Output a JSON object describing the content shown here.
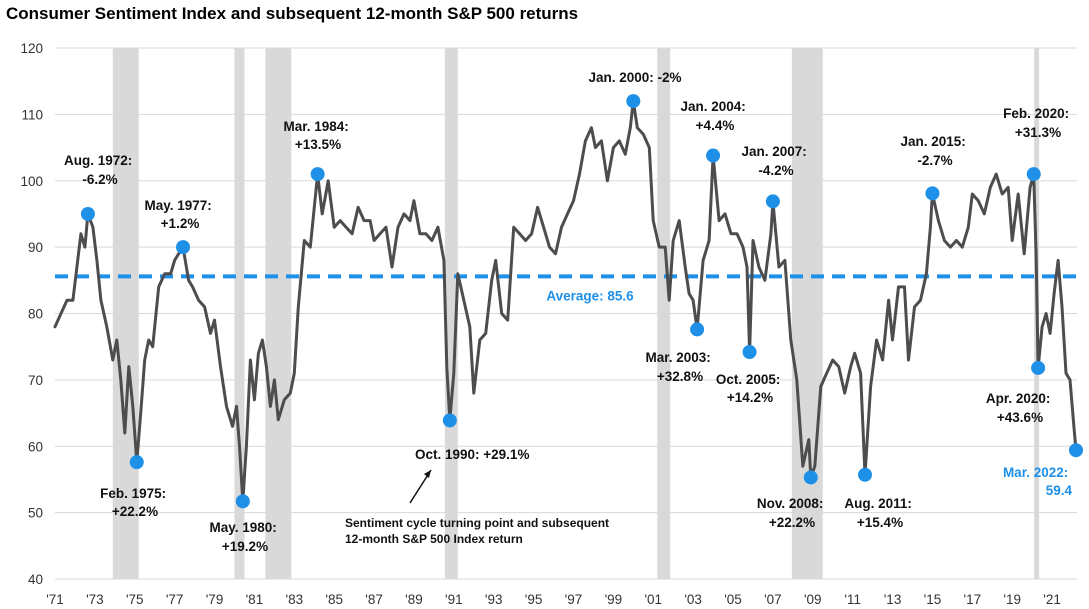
{
  "chart_data": {
    "type": "line",
    "title": "Consumer Sentiment Index and subsequent 12-month S&P 500 returns",
    "xlabel": "",
    "ylabel": "",
    "ylim": [
      40,
      120
    ],
    "y_ticks": [
      40,
      50,
      60,
      70,
      80,
      90,
      100,
      110,
      120
    ],
    "x_ticks": [
      {
        "year": 1971,
        "label": "'71"
      },
      {
        "year": 1973,
        "label": "'73"
      },
      {
        "year": 1975,
        "label": "'75"
      },
      {
        "year": 1977,
        "label": "'77"
      },
      {
        "year": 1979,
        "label": "'79"
      },
      {
        "year": 1981,
        "label": "'81"
      },
      {
        "year": 1983,
        "label": "'83"
      },
      {
        "year": 1985,
        "label": "'85"
      },
      {
        "year": 1987,
        "label": "'87"
      },
      {
        "year": 1989,
        "label": "'89"
      },
      {
        "year": 1991,
        "label": "'91"
      },
      {
        "year": 1993,
        "label": "'93"
      },
      {
        "year": 1995,
        "label": "'95"
      },
      {
        "year": 1997,
        "label": "'97"
      },
      {
        "year": 1999,
        "label": "'99"
      },
      {
        "year": 2001,
        "label": "'01"
      },
      {
        "year": 2003,
        "label": "'03"
      },
      {
        "year": 2005,
        "label": "'05"
      },
      {
        "year": 2007,
        "label": "'07"
      },
      {
        "year": 2009,
        "label": "'09"
      },
      {
        "year": 2011,
        "label": "'11"
      },
      {
        "year": 2013,
        "label": "'13"
      },
      {
        "year": 2015,
        "label": "'15"
      },
      {
        "year": 2017,
        "label": "'17"
      },
      {
        "year": 2019,
        "label": "'19"
      },
      {
        "year": 2021,
        "label": "'21"
      }
    ],
    "x_range": [
      1971,
      2022.25
    ],
    "recessions": [
      [
        1973.9,
        1975.2
      ],
      [
        1980.0,
        1980.5
      ],
      [
        1981.55,
        1982.85
      ],
      [
        1990.55,
        1991.2
      ],
      [
        2001.2,
        2001.85
      ],
      [
        2007.95,
        2009.5
      ],
      [
        2020.1,
        2020.35
      ]
    ],
    "average": {
      "value": 85.6,
      "label": "Average: 85.6"
    },
    "series": [
      {
        "name": "Consumer Sentiment Index",
        "points": [
          [
            1971.0,
            78
          ],
          [
            1971.3,
            80
          ],
          [
            1971.6,
            82
          ],
          [
            1971.9,
            82
          ],
          [
            1972.1,
            87
          ],
          [
            1972.3,
            92
          ],
          [
            1972.5,
            90
          ],
          [
            1972.65,
            95
          ],
          [
            1972.9,
            93
          ],
          [
            1973.1,
            88
          ],
          [
            1973.3,
            82
          ],
          [
            1973.6,
            78
          ],
          [
            1973.9,
            73
          ],
          [
            1974.1,
            76
          ],
          [
            1974.3,
            70
          ],
          [
            1974.5,
            62
          ],
          [
            1974.7,
            72
          ],
          [
            1974.9,
            66
          ],
          [
            1975.1,
            57.6
          ],
          [
            1975.3,
            65
          ],
          [
            1975.5,
            73
          ],
          [
            1975.7,
            76
          ],
          [
            1975.9,
            75
          ],
          [
            1976.2,
            84
          ],
          [
            1976.5,
            86
          ],
          [
            1976.8,
            86
          ],
          [
            1977.0,
            88
          ],
          [
            1977.2,
            89
          ],
          [
            1977.42,
            90
          ],
          [
            1977.7,
            85
          ],
          [
            1977.9,
            84
          ],
          [
            1978.2,
            82
          ],
          [
            1978.5,
            81
          ],
          [
            1978.8,
            77
          ],
          [
            1979.0,
            79
          ],
          [
            1979.3,
            72
          ],
          [
            1979.6,
            66
          ],
          [
            1979.9,
            63
          ],
          [
            1980.1,
            66
          ],
          [
            1980.25,
            60
          ],
          [
            1980.42,
            51.7
          ],
          [
            1980.6,
            60
          ],
          [
            1980.8,
            73
          ],
          [
            1981.0,
            67
          ],
          [
            1981.2,
            74
          ],
          [
            1981.4,
            76
          ],
          [
            1981.6,
            72
          ],
          [
            1981.8,
            66
          ],
          [
            1982.0,
            70
          ],
          [
            1982.2,
            64
          ],
          [
            1982.5,
            67
          ],
          [
            1982.8,
            68
          ],
          [
            1983.0,
            71
          ],
          [
            1983.2,
            81
          ],
          [
            1983.5,
            91
          ],
          [
            1983.8,
            90
          ],
          [
            1984.17,
            101
          ],
          [
            1984.4,
            95
          ],
          [
            1984.7,
            100
          ],
          [
            1985.0,
            93
          ],
          [
            1985.3,
            94
          ],
          [
            1985.6,
            93
          ],
          [
            1985.9,
            92
          ],
          [
            1986.2,
            96
          ],
          [
            1986.5,
            94
          ],
          [
            1986.8,
            94
          ],
          [
            1987.0,
            91
          ],
          [
            1987.3,
            92
          ],
          [
            1987.6,
            93
          ],
          [
            1987.9,
            87
          ],
          [
            1988.2,
            93
          ],
          [
            1988.5,
            95
          ],
          [
            1988.8,
            94
          ],
          [
            1989.0,
            97
          ],
          [
            1989.3,
            92
          ],
          [
            1989.6,
            92
          ],
          [
            1989.9,
            91
          ],
          [
            1990.2,
            93
          ],
          [
            1990.5,
            88
          ],
          [
            1990.65,
            72
          ],
          [
            1990.8,
            63.9
          ],
          [
            1991.0,
            71
          ],
          [
            1991.2,
            86
          ],
          [
            1991.5,
            82
          ],
          [
            1991.8,
            78
          ],
          [
            1992.0,
            68
          ],
          [
            1992.3,
            76
          ],
          [
            1992.6,
            77
          ],
          [
            1992.9,
            85
          ],
          [
            1993.1,
            88
          ],
          [
            1993.4,
            80
          ],
          [
            1993.7,
            79
          ],
          [
            1994.0,
            93
          ],
          [
            1994.3,
            92
          ],
          [
            1994.6,
            91
          ],
          [
            1994.9,
            92
          ],
          [
            1995.2,
            96
          ],
          [
            1995.5,
            93
          ],
          [
            1995.8,
            90
          ],
          [
            1996.1,
            89
          ],
          [
            1996.4,
            93
          ],
          [
            1996.7,
            95
          ],
          [
            1997.0,
            97
          ],
          [
            1997.3,
            101
          ],
          [
            1997.6,
            106
          ],
          [
            1997.9,
            108
          ],
          [
            1998.1,
            105
          ],
          [
            1998.4,
            106
          ],
          [
            1998.7,
            100
          ],
          [
            1999.0,
            105
          ],
          [
            1999.3,
            106
          ],
          [
            1999.6,
            104
          ],
          [
            1999.85,
            108
          ],
          [
            2000.0,
            112
          ],
          [
            2000.2,
            108
          ],
          [
            2000.5,
            107
          ],
          [
            2000.8,
            105
          ],
          [
            2001.0,
            94
          ],
          [
            2001.3,
            90
          ],
          [
            2001.6,
            90
          ],
          [
            2001.8,
            82
          ],
          [
            2002.0,
            91
          ],
          [
            2002.3,
            94
          ],
          [
            2002.6,
            87
          ],
          [
            2002.8,
            83
          ],
          [
            2003.0,
            82
          ],
          [
            2003.2,
            77.6
          ],
          [
            2003.5,
            88
          ],
          [
            2003.8,
            91
          ],
          [
            2004.0,
            103.8
          ],
          [
            2004.3,
            94
          ],
          [
            2004.6,
            95
          ],
          [
            2004.9,
            92
          ],
          [
            2005.2,
            92
          ],
          [
            2005.5,
            90
          ],
          [
            2005.7,
            87
          ],
          [
            2005.83,
            74.2
          ],
          [
            2006.0,
            91
          ],
          [
            2006.3,
            87
          ],
          [
            2006.6,
            85
          ],
          [
            2006.9,
            92
          ],
          [
            2007.0,
            96.9
          ],
          [
            2007.3,
            87
          ],
          [
            2007.6,
            88
          ],
          [
            2007.9,
            76
          ],
          [
            2008.2,
            70
          ],
          [
            2008.5,
            57
          ],
          [
            2008.8,
            61
          ],
          [
            2008.9,
            55.3
          ],
          [
            2009.1,
            57
          ],
          [
            2009.4,
            69
          ],
          [
            2009.7,
            71
          ],
          [
            2010.0,
            73
          ],
          [
            2010.3,
            72
          ],
          [
            2010.6,
            68
          ],
          [
            2010.9,
            72
          ],
          [
            2011.1,
            74
          ],
          [
            2011.4,
            71
          ],
          [
            2011.62,
            55.7
          ],
          [
            2011.9,
            69
          ],
          [
            2012.2,
            76
          ],
          [
            2012.5,
            73
          ],
          [
            2012.8,
            82
          ],
          [
            2013.0,
            76
          ],
          [
            2013.3,
            84
          ],
          [
            2013.6,
            84
          ],
          [
            2013.8,
            73
          ],
          [
            2014.1,
            81
          ],
          [
            2014.4,
            82
          ],
          [
            2014.7,
            86
          ],
          [
            2014.9,
            93
          ],
          [
            2015.0,
            98.1
          ],
          [
            2015.3,
            94
          ],
          [
            2015.6,
            91
          ],
          [
            2015.9,
            90
          ],
          [
            2016.2,
            91
          ],
          [
            2016.5,
            90
          ],
          [
            2016.8,
            93
          ],
          [
            2017.0,
            98
          ],
          [
            2017.3,
            97
          ],
          [
            2017.6,
            95
          ],
          [
            2017.9,
            99
          ],
          [
            2018.2,
            101
          ],
          [
            2018.5,
            98
          ],
          [
            2018.8,
            99
          ],
          [
            2019.0,
            91
          ],
          [
            2019.3,
            98
          ],
          [
            2019.6,
            89
          ],
          [
            2019.9,
            99
          ],
          [
            2020.08,
            101
          ],
          [
            2020.2,
            89
          ],
          [
            2020.3,
            71.8
          ],
          [
            2020.5,
            78
          ],
          [
            2020.7,
            80
          ],
          [
            2020.9,
            77
          ],
          [
            2021.1,
            83
          ],
          [
            2021.3,
            88
          ],
          [
            2021.5,
            81
          ],
          [
            2021.7,
            71
          ],
          [
            2021.9,
            70
          ],
          [
            2022.1,
            62.8
          ],
          [
            2022.2,
            59.4
          ]
        ]
      }
    ],
    "highlighted_points": [
      {
        "x": 1972.65,
        "y": 95,
        "label": "Aug. 1972: -6.2%"
      },
      {
        "x": 1975.1,
        "y": 57.6,
        "label": "Feb. 1975: +22.2%"
      },
      {
        "x": 1977.42,
        "y": 90,
        "label": "May. 1977: +1.2%"
      },
      {
        "x": 1980.42,
        "y": 51.7,
        "label": "May. 1980: +19.2%"
      },
      {
        "x": 1984.17,
        "y": 101,
        "label": "Mar. 1984: +13.5%"
      },
      {
        "x": 1990.8,
        "y": 63.9,
        "label": "Oct. 1990: +29.1%"
      },
      {
        "x": 2000.0,
        "y": 112,
        "label": "Jan. 2000: -2%"
      },
      {
        "x": 2003.2,
        "y": 77.6,
        "label": "Mar. 2003: +32.8%"
      },
      {
        "x": 2004.0,
        "y": 103.8,
        "label": "Jan. 2004: +4.4%"
      },
      {
        "x": 2005.83,
        "y": 74.2,
        "label": "Oct. 2005: +14.2%"
      },
      {
        "x": 2007.0,
        "y": 96.9,
        "label": "Jan. 2007: -4.2%"
      },
      {
        "x": 2008.9,
        "y": 55.3,
        "label": "Nov. 2008: +22.2%"
      },
      {
        "x": 2011.62,
        "y": 55.7,
        "label": "Aug. 2011: +15.4%"
      },
      {
        "x": 2015.0,
        "y": 98.1,
        "label": "Jan. 2015: -2.7%"
      },
      {
        "x": 2020.08,
        "y": 101,
        "label": "Feb. 2020: +31.3%"
      },
      {
        "x": 2020.3,
        "y": 71.8,
        "label": "Apr. 2020: +43.6%"
      },
      {
        "x": 2022.2,
        "y": 59.4,
        "label": "Mar. 2022: 59.4"
      }
    ],
    "annotations": {
      "aug_1972": [
        "Aug. 1972:",
        "-6.2%"
      ],
      "feb_1975": [
        "Feb. 1975:",
        "+22.2%"
      ],
      "may_1977": [
        "May. 1977:",
        "+1.2%"
      ],
      "may_1980": [
        "May. 1980:",
        "+19.2%"
      ],
      "mar_1984": [
        "Mar. 1984:",
        "+13.5%"
      ],
      "oct_1990": "Oct. 1990: +29.1%",
      "jan_2000": "Jan. 2000: -2%",
      "mar_2003": [
        "Mar. 2003:",
        "+32.8%"
      ],
      "jan_2004": [
        "Jan. 2004:",
        "+4.4%"
      ],
      "oct_2005": [
        "Oct. 2005:",
        "+14.2%"
      ],
      "jan_2007": [
        "Jan. 2007:",
        "-4.2%"
      ],
      "nov_2008": [
        "Nov. 2008:",
        "+22.2%"
      ],
      "aug_2011": [
        "Aug. 2011:",
        "+15.4%"
      ],
      "jan_2015": [
        "Jan. 2015:",
        "-2.7%"
      ],
      "feb_2020": [
        "Feb. 2020:",
        "+31.3%"
      ],
      "apr_2020": [
        "Apr. 2020:",
        "+43.6%"
      ],
      "mar_2022": [
        "Mar. 2022:",
        "59.4"
      ],
      "note": [
        "Sentiment cycle turning point and subsequent",
        "12-month S&P 500 Index return"
      ]
    },
    "colors": {
      "line": "#4d4d4f",
      "marker": "#1e90e8",
      "average": "#1e90e8",
      "recession": "#d9d9d9",
      "grid": "#d9d9d9",
      "latest_label": "#1e90e8"
    }
  }
}
